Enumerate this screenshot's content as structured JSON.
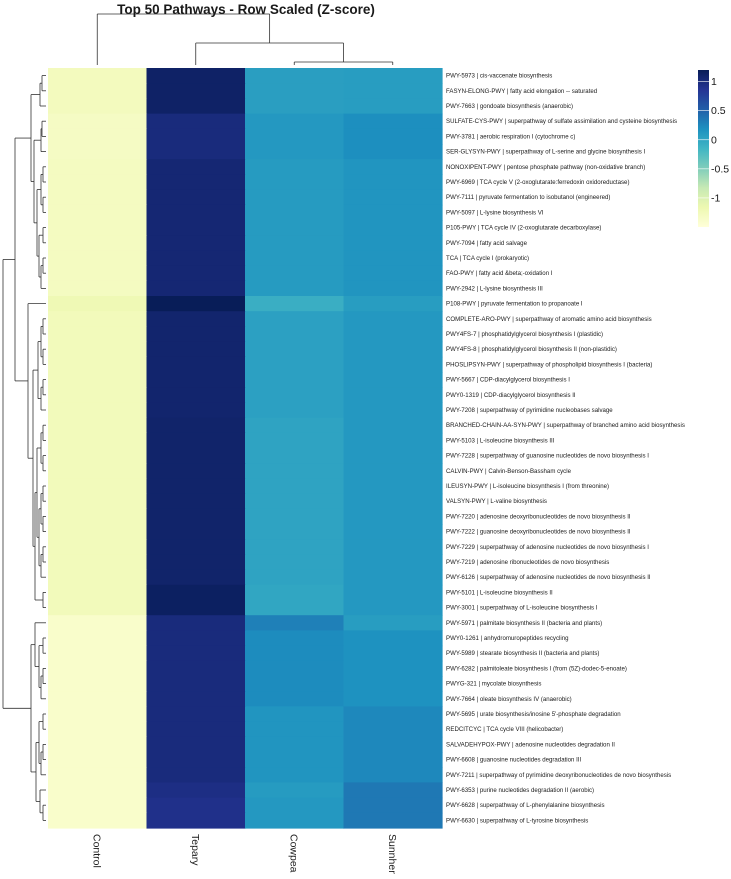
{
  "chart_data": {
    "type": "heatmap",
    "title": "Top 50 Pathways - Row Scaled (Z-score)",
    "columns": [
      "Control",
      "Tepary",
      "Cowpea",
      "Sunnhemp"
    ],
    "legend": {
      "ticks": [
        1,
        0.5,
        0,
        -0.5,
        -1
      ],
      "tick_labels": [
        "1",
        "0.5",
        "0",
        "-0.5",
        "-1"
      ],
      "range": [
        -1.5,
        1.2
      ],
      "placement": "top-right",
      "colors": [
        "#ffffd9",
        "#edf8b1",
        "#c7e9b4",
        "#7fcdbb",
        "#41b6c4",
        "#1d91c0",
        "#225ea8",
        "#253494",
        "#081d58"
      ]
    },
    "rows": [
      {
        "label": "PWY-5973 | cis-vaccenate biosynthesis",
        "values": [
          -1.27,
          1.12,
          0.07,
          0.08
        ]
      },
      {
        "label": "FASYN-ELONG-PWY | fatty acid elongation -- saturated",
        "values": [
          -1.27,
          1.12,
          0.07,
          0.08
        ]
      },
      {
        "label": "PWY-7663 | gondoate biosynthesis (anaerobic)",
        "values": [
          -1.27,
          1.12,
          0.07,
          0.08
        ]
      },
      {
        "label": "SULFATE-CYS-PWY | superpathway of sulfate assimilation and cysteine biosynthesis",
        "values": [
          -1.32,
          1.0,
          0.12,
          0.2
        ]
      },
      {
        "label": "PWY-3781 | aerobic respiration I (cytochrome c)",
        "values": [
          -1.32,
          1.0,
          0.12,
          0.2
        ]
      },
      {
        "label": "SER-GLYSYN-PWY | superpathway of L-serine and glycine biosynthesis I",
        "values": [
          -1.32,
          1.0,
          0.12,
          0.2
        ]
      },
      {
        "label": "NONOXIPENT-PWY | pentose phosphate pathway (non-oxidative branch)",
        "values": [
          -1.3,
          1.05,
          0.1,
          0.15
        ]
      },
      {
        "label": "PWY-6969 | TCA cycle V (2-oxoglutarate:ferredoxin oxidoreductase)",
        "values": [
          -1.3,
          1.05,
          0.1,
          0.15
        ]
      },
      {
        "label": "PWY-7111 | pyruvate fermentation to isobutanol (engineered)",
        "values": [
          -1.3,
          1.05,
          0.1,
          0.15
        ]
      },
      {
        "label": "PWY-5097 | L-lysine biosynthesis VI",
        "values": [
          -1.3,
          1.05,
          0.1,
          0.15
        ]
      },
      {
        "label": "P105-PWY | TCA cycle IV (2-oxoglutarate decarboxylase)",
        "values": [
          -1.3,
          1.05,
          0.1,
          0.15
        ]
      },
      {
        "label": "PWY-7094 | fatty acid salvage",
        "values": [
          -1.3,
          1.05,
          0.1,
          0.15
        ]
      },
      {
        "label": "TCA | TCA cycle I (prokaryotic)",
        "values": [
          -1.3,
          1.05,
          0.1,
          0.15
        ]
      },
      {
        "label": "FAO-PWY | fatty acid &beta;-oxidation I",
        "values": [
          -1.3,
          1.05,
          0.1,
          0.15
        ]
      },
      {
        "label": "PWY-2942 | L-lysine biosynthesis III",
        "values": [
          -1.3,
          1.05,
          0.1,
          0.15
        ]
      },
      {
        "label": "P108-PWY | pyruvate fermentation to propanoate I",
        "values": [
          -1.2,
          1.2,
          -0.08,
          0.08
        ]
      },
      {
        "label": "COMPLETE-ARO-PWY | superpathway of aromatic amino acid biosynthesis",
        "values": [
          -1.25,
          1.08,
          0.05,
          0.12
        ]
      },
      {
        "label": "PWY4FS-7 | phosphatidylglycerol biosynthesis I (plastidic)",
        "values": [
          -1.25,
          1.08,
          0.05,
          0.12
        ]
      },
      {
        "label": "PWY4FS-8 | phosphatidylglycerol biosynthesis II (non-plastidic)",
        "values": [
          -1.25,
          1.08,
          0.05,
          0.12
        ]
      },
      {
        "label": "PHOSLIPSYN-PWY | superpathway of phospholipid biosynthesis I (bacteria)",
        "values": [
          -1.25,
          1.08,
          0.05,
          0.12
        ]
      },
      {
        "label": "PWY-5667 | CDP-diacylglycerol biosynthesis I",
        "values": [
          -1.25,
          1.08,
          0.05,
          0.12
        ]
      },
      {
        "label": "PWY0-1319 | CDP-diacylglycerol biosynthesis II",
        "values": [
          -1.25,
          1.08,
          0.05,
          0.12
        ]
      },
      {
        "label": "PWY-7208 | superpathway of pyrimidine nucleobases salvage",
        "values": [
          -1.25,
          1.08,
          0.05,
          0.12
        ]
      },
      {
        "label": "BRANCHED-CHAIN-AA-SYN-PWY | superpathway of branched amino acid biosynthesis",
        "values": [
          -1.25,
          1.1,
          0.02,
          0.12
        ]
      },
      {
        "label": "PWY-5103 | L-isoleucine biosynthesis III",
        "values": [
          -1.25,
          1.1,
          0.02,
          0.12
        ]
      },
      {
        "label": "PWY-7228 | superpathway of guanosine nucleotides de novo biosynthesis I",
        "values": [
          -1.25,
          1.1,
          0.02,
          0.12
        ]
      },
      {
        "label": "CALVIN-PWY | Calvin-Benson-Bassham cycle",
        "values": [
          -1.25,
          1.1,
          0.02,
          0.12
        ]
      },
      {
        "label": "ILEUSYN-PWY | L-isoleucine biosynthesis I (from threonine)",
        "values": [
          -1.25,
          1.1,
          0.02,
          0.12
        ]
      },
      {
        "label": "VALSYN-PWY | L-valine biosynthesis",
        "values": [
          -1.25,
          1.1,
          0.02,
          0.12
        ]
      },
      {
        "label": "PWY-7220 | adenosine deoxyribonucleotides de novo biosynthesis II",
        "values": [
          -1.25,
          1.1,
          0.02,
          0.12
        ]
      },
      {
        "label": "PWY-7222 | guanosine deoxyribonucleotides de novo biosynthesis II",
        "values": [
          -1.25,
          1.1,
          0.02,
          0.12
        ]
      },
      {
        "label": "PWY-7229 | superpathway of adenosine nucleotides de novo biosynthesis I",
        "values": [
          -1.25,
          1.1,
          0.02,
          0.12
        ]
      },
      {
        "label": "PWY-7219 | adenosine ribonucleotides de novo biosynthesis",
        "values": [
          -1.25,
          1.1,
          0.02,
          0.12
        ]
      },
      {
        "label": "PWY-6126 | superpathway of adenosine nucleotides de novo biosynthesis II",
        "values": [
          -1.25,
          1.1,
          0.02,
          0.12
        ]
      },
      {
        "label": "PWY-5101 | L-isoleucine biosynthesis II",
        "values": [
          -1.25,
          1.15,
          0.0,
          0.12
        ]
      },
      {
        "label": "PWY-3001 | superpathway of L-isoleucine biosynthesis I",
        "values": [
          -1.25,
          1.15,
          0.0,
          0.12
        ]
      },
      {
        "label": "PWY-5971 | palmitate biosynthesis II (bacteria and plants)",
        "values": [
          -1.38,
          1.0,
          0.3,
          0.08
        ]
      },
      {
        "label": "PWY0-1261 | anhydromuropeptides recycling",
        "values": [
          -1.38,
          1.0,
          0.22,
          0.18
        ]
      },
      {
        "label": "PWY-5989 | stearate biosynthesis II (bacteria and plants)",
        "values": [
          -1.38,
          1.0,
          0.22,
          0.18
        ]
      },
      {
        "label": "PWY-6282 | palmitoleate biosynthesis I (from (5Z)-dodec-5-enoate)",
        "values": [
          -1.38,
          1.0,
          0.22,
          0.18
        ]
      },
      {
        "label": "PWYG-321 | mycolate biosynthesis",
        "values": [
          -1.38,
          1.0,
          0.22,
          0.18
        ]
      },
      {
        "label": "PWY-7664 | oleate biosynthesis IV (anaerobic)",
        "values": [
          -1.38,
          1.0,
          0.22,
          0.18
        ]
      },
      {
        "label": "PWY-5695 | urate biosynthesis/inosine 5'-phosphate degradation",
        "values": [
          -1.38,
          1.0,
          0.15,
          0.25
        ]
      },
      {
        "label": "REDCITCYC | TCA cycle VIII (helicobacter)",
        "values": [
          -1.38,
          1.0,
          0.15,
          0.25
        ]
      },
      {
        "label": "SALVADEHYPOX-PWY | adenosine nucleotides degradation II",
        "values": [
          -1.38,
          1.0,
          0.15,
          0.25
        ]
      },
      {
        "label": "PWY-6608 | guanosine nucleotides degradation III",
        "values": [
          -1.38,
          1.0,
          0.15,
          0.25
        ]
      },
      {
        "label": "PWY-7211 | superpathway of pyrimidine deoxyribonucleotides de novo biosynthesis",
        "values": [
          -1.38,
          1.0,
          0.15,
          0.25
        ]
      },
      {
        "label": "PWY-6353 | purine nucleotides degradation II (aerobic)",
        "values": [
          -1.38,
          0.95,
          0.1,
          0.35
        ]
      },
      {
        "label": "PWY-6628 | superpathway of L-phenylalanine biosynthesis",
        "values": [
          -1.38,
          0.92,
          0.12,
          0.35
        ]
      },
      {
        "label": "PWY-6630 | superpathway of L-tyrosine biosynthesis",
        "values": [
          -1.38,
          0.92,
          0.12,
          0.35
        ]
      }
    ]
  }
}
